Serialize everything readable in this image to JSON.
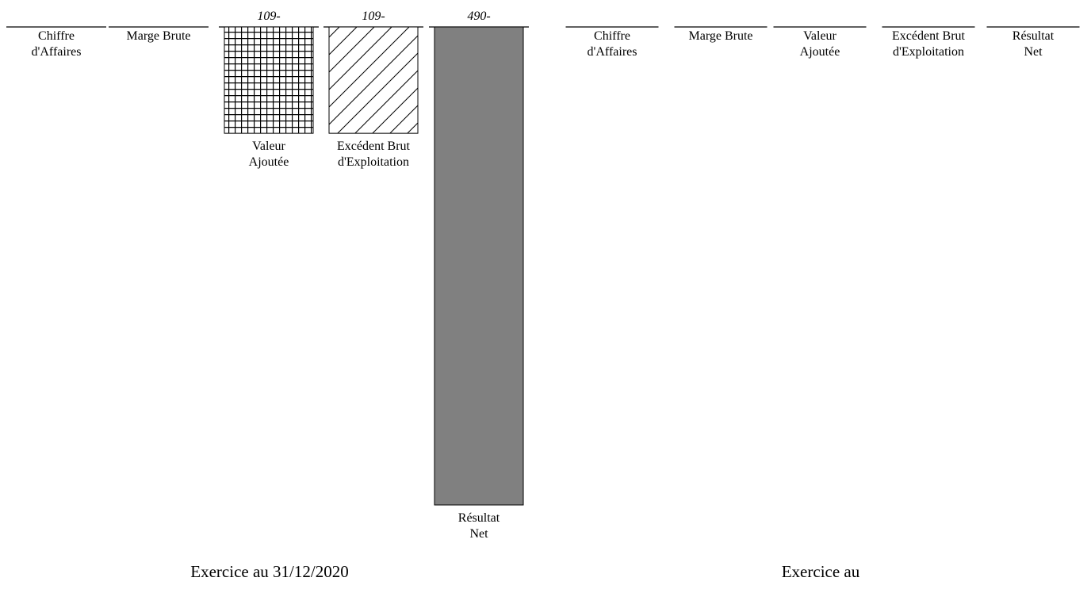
{
  "chart_data": [
    {
      "type": "bar",
      "categories": [
        [
          "Chiffre",
          "d'Affaires"
        ],
        [
          "Marge Brute"
        ],
        [
          "Valeur",
          "Ajoutée"
        ],
        [
          "Excédent Brut",
          "d'Exploitation"
        ],
        [
          "Résultat",
          "Net"
        ]
      ],
      "values": [
        0,
        0,
        -109,
        -109,
        -490
      ],
      "data_labels": [
        "",
        "",
        "109-",
        "109-",
        "490-"
      ],
      "ylim": [
        -490,
        0
      ],
      "patterns": [
        "none",
        "none",
        "grid",
        "diagonal",
        "solid"
      ],
      "colors": {
        "solid_fill": "#808080",
        "stroke": "#000000"
      },
      "grid": false,
      "title": "",
      "caption": "Exercice au 31/12/2020"
    },
    {
      "type": "bar",
      "categories": [
        [
          "Chiffre",
          "d'Affaires"
        ],
        [
          "Marge Brute"
        ],
        [
          "Valeur",
          "Ajoutée"
        ],
        [
          "Excédent Brut",
          "d'Exploitation"
        ],
        [
          "Résultat",
          "Net"
        ]
      ],
      "values": [
        0,
        0,
        0,
        0,
        0
      ],
      "data_labels": [
        "",
        "",
        "",
        "",
        ""
      ],
      "grid": false,
      "title": "",
      "caption": "Exercice au"
    }
  ]
}
